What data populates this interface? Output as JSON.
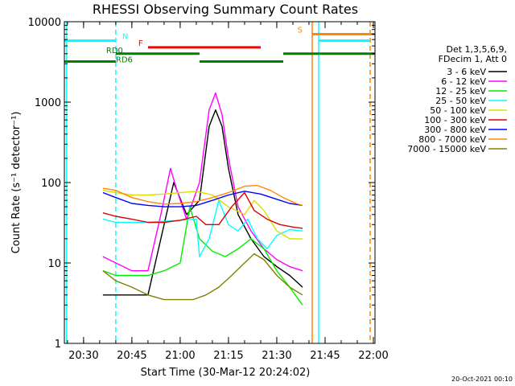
{
  "chart_data": {
    "type": "line",
    "title": "RHESSI Observing Summary Count Rates",
    "xlabel": "Start Time (30-Mar-12 20:24:02)",
    "ylabel": "Count Rate (s⁻¹ detector⁻¹)",
    "y_scale": "log",
    "ylim": [
      1,
      10000
    ],
    "xlim": [
      "20:24:02",
      "22:00:30"
    ],
    "x_ticks": [
      "20:30",
      "20:45",
      "21:00",
      "21:15",
      "21:30",
      "21:45",
      "22:00"
    ],
    "y_ticks": [
      "1",
      "10",
      "100",
      "1000",
      "10000"
    ],
    "legend_position": "right",
    "legend_header": [
      "Det 1,3,5,6,9,",
      "FDecim 1, Att 0"
    ],
    "footer": "20-Oct-2021 00:10",
    "series": [
      {
        "name": "3 - 6 keV",
        "color": "#000000",
        "x": [
          "20:36",
          "20:40",
          "20:45",
          "20:50",
          "20:54",
          "20:58",
          "21:02",
          "21:06",
          "21:09",
          "21:11",
          "21:13",
          "21:15",
          "21:18",
          "21:22",
          "21:26",
          "21:30",
          "21:34",
          "21:38"
        ],
        "y": [
          4,
          4,
          4,
          4,
          20,
          100,
          40,
          60,
          500,
          800,
          500,
          150,
          40,
          20,
          12,
          9,
          7,
          5
        ]
      },
      {
        "name": "6 - 12 keV",
        "color": "#ff00ff",
        "x": [
          "20:36",
          "20:40",
          "20:45",
          "20:50",
          "20:54",
          "20:57",
          "20:59",
          "21:02",
          "21:06",
          "21:09",
          "21:11",
          "21:13",
          "21:15",
          "21:18",
          "21:22",
          "21:26",
          "21:30",
          "21:34",
          "21:38"
        ],
        "y": [
          12,
          10,
          8,
          8,
          40,
          150,
          80,
          35,
          100,
          800,
          1300,
          700,
          200,
          50,
          25,
          15,
          11,
          9,
          8
        ]
      },
      {
        "name": "12 - 25 keV",
        "color": "#00ee00",
        "x": [
          "20:36",
          "20:40",
          "20:45",
          "20:50",
          "20:55",
          "21:00",
          "21:03",
          "21:06",
          "21:10",
          "21:14",
          "21:18",
          "21:22",
          "21:26",
          "21:30",
          "21:34",
          "21:38"
        ],
        "y": [
          8,
          7,
          7,
          7,
          8,
          10,
          50,
          20,
          14,
          12,
          15,
          20,
          15,
          8,
          5,
          3
        ]
      },
      {
        "name": "25 - 50 keV",
        "color": "#00ffff",
        "x": [
          "20:36",
          "20:40",
          "20:45",
          "20:50",
          "20:55",
          "21:00",
          "21:05",
          "21:06",
          "21:09",
          "21:12",
          "21:15",
          "21:18",
          "21:21",
          "21:24",
          "21:27",
          "21:30",
          "21:34",
          "21:38"
        ],
        "y": [
          35,
          32,
          32,
          32,
          33,
          34,
          35,
          12,
          20,
          60,
          30,
          25,
          35,
          20,
          15,
          22,
          26,
          25
        ]
      },
      {
        "name": "50 - 100 keV",
        "color": "#dddd00",
        "x": [
          "20:36",
          "20:40",
          "20:45",
          "20:50",
          "20:55",
          "21:00",
          "21:05",
          "21:10",
          "21:15",
          "21:20",
          "21:23",
          "21:26",
          "21:30",
          "21:34",
          "21:38"
        ],
        "y": [
          80,
          75,
          70,
          70,
          72,
          75,
          78,
          70,
          50,
          40,
          60,
          45,
          25,
          20,
          20
        ]
      },
      {
        "name": "100 - 300 keV",
        "color": "#dd0000",
        "x": [
          "20:36",
          "20:40",
          "20:45",
          "20:50",
          "20:55",
          "21:00",
          "21:05",
          "21:08",
          "21:12",
          "21:16",
          "21:20",
          "21:23",
          "21:27",
          "21:31",
          "21:35",
          "21:38"
        ],
        "y": [
          42,
          38,
          35,
          32,
          32,
          34,
          38,
          30,
          30,
          50,
          75,
          45,
          35,
          30,
          28,
          27
        ]
      },
      {
        "name": "300 - 800 keV",
        "color": "#0000ff",
        "x": [
          "20:36",
          "20:40",
          "20:45",
          "20:50",
          "20:55",
          "21:00",
          "21:05",
          "21:10",
          "21:15",
          "21:20",
          "21:25",
          "21:30",
          "21:34",
          "21:38"
        ],
        "y": [
          75,
          65,
          55,
          52,
          50,
          50,
          52,
          60,
          70,
          78,
          72,
          62,
          55,
          52
        ]
      },
      {
        "name": "800 - 7000 keV",
        "color": "#ff8800",
        "x": [
          "20:36",
          "20:40",
          "20:45",
          "20:50",
          "20:55",
          "21:00",
          "21:05",
          "21:10",
          "21:15",
          "21:20",
          "21:24",
          "21:28",
          "21:32",
          "21:36",
          "21:38"
        ],
        "y": [
          85,
          80,
          65,
          58,
          54,
          55,
          58,
          65,
          75,
          90,
          92,
          80,
          65,
          55,
          52
        ]
      },
      {
        "name": "7000 - 15000 keV",
        "color": "#808000",
        "x": [
          "20:36",
          "20:40",
          "20:45",
          "20:50",
          "20:55",
          "21:00",
          "21:04",
          "21:08",
          "21:12",
          "21:16",
          "21:20",
          "21:23",
          "21:26",
          "21:30",
          "21:34",
          "21:38"
        ],
        "y": [
          8,
          6,
          5,
          4,
          3.5,
          3.5,
          3.5,
          4,
          5,
          7,
          10,
          13,
          11,
          7,
          5,
          4
        ]
      }
    ],
    "annotations": [
      {
        "label": "N",
        "color": "#00ffff",
        "bars": [
          [
            "20:24:02",
            "20:40"
          ],
          [
            "21:43",
            "21:59"
          ]
        ],
        "level": 5800
      },
      {
        "label": "F",
        "color": "#ff0000",
        "bars": [
          [
            "20:50",
            "21:25"
          ]
        ],
        "level": 4800
      },
      {
        "label": "S",
        "color": "#ff8800",
        "bars": [
          [
            "21:41",
            "22:00:30"
          ]
        ],
        "level": 7000
      },
      {
        "label": "RD0",
        "color": "#008000",
        "bars": [
          [
            "20:40",
            "21:06"
          ],
          [
            "21:32",
            "22:00:30"
          ]
        ],
        "level": 4000
      },
      {
        "label": "RD6",
        "color": "#008000",
        "bars": [
          [
            "20:24:02",
            "20:40"
          ],
          [
            "21:06",
            "21:32"
          ]
        ],
        "level": 3200
      }
    ],
    "vlines": [
      {
        "x": "20:24:45",
        "color": "#00ffff",
        "style": "solid"
      },
      {
        "x": "20:40",
        "color": "#00ffff",
        "style": "dashed"
      },
      {
        "x": "21:41",
        "color": "#ff8800",
        "style": "solid"
      },
      {
        "x": "21:43",
        "color": "#00ffff",
        "style": "solid"
      },
      {
        "x": "21:59",
        "color": "#ff8800",
        "style": "dashed"
      }
    ]
  }
}
